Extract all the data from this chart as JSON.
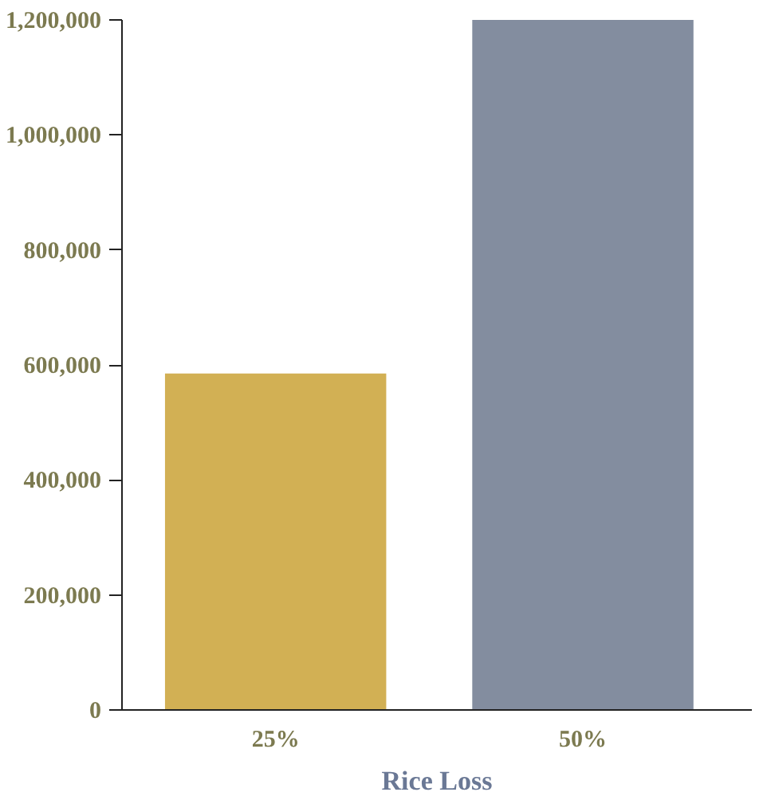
{
  "chart_data": {
    "type": "bar",
    "xlabel": "Rice Loss",
    "categories": [
      "25%",
      "50%"
    ],
    "values": [
      585000,
      1200000
    ],
    "colors": [
      "#d2b054",
      "#838d9f"
    ],
    "ylim": [
      0,
      1200000
    ],
    "yticks": [
      {
        "value": 0,
        "label": "0"
      },
      {
        "value": 200000,
        "label": "200,000"
      },
      {
        "value": 400000,
        "label": "400,000"
      },
      {
        "value": 600000,
        "label": "600,000"
      },
      {
        "value": 800000,
        "label": "800,000"
      },
      {
        "value": 1000000,
        "label": "1,000,000"
      },
      {
        "value": 1200000,
        "label": "1,200,000"
      }
    ],
    "grid": false,
    "legend": false
  }
}
